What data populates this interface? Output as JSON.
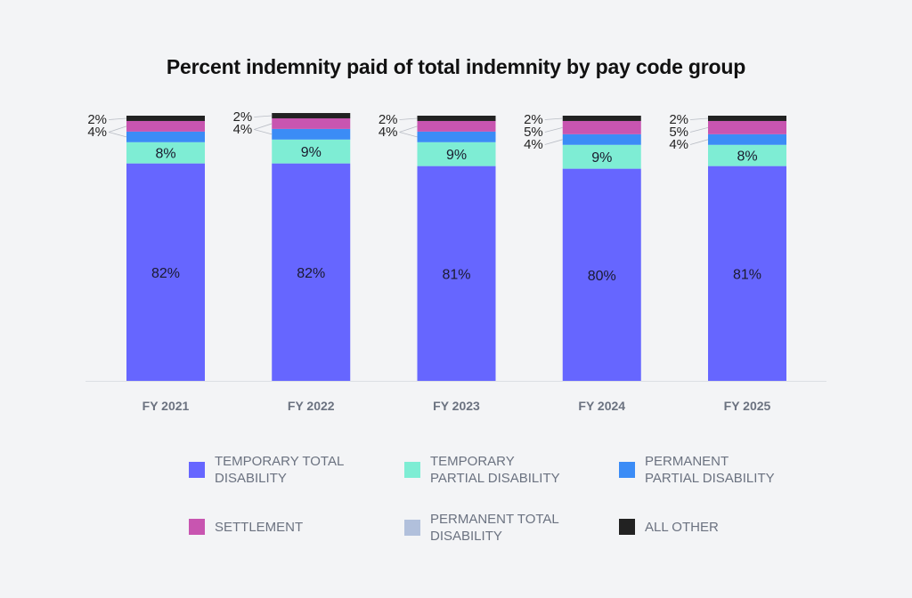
{
  "chart_data": {
    "type": "bar",
    "stacked": true,
    "title": "Percent indemnity paid of total indemnity by pay code group",
    "xlabel": "",
    "ylabel": "",
    "ylim": [
      0,
      100
    ],
    "grid": false,
    "legend_position": "bottom",
    "categories": [
      "FY 2021",
      "FY 2022",
      "FY 2023",
      "FY 2024",
      "FY 2025"
    ],
    "series": [
      {
        "name": "TEMPORARY TOTAL DISABILITY",
        "label": "TEMPORARY TOTAL\nDISABILITY",
        "color": "#6666ff",
        "values": [
          82,
          82,
          81,
          80,
          81
        ]
      },
      {
        "name": "TEMPORARY PARTIAL DISABILITY",
        "label": "TEMPORARY\nPARTIAL DISABILITY",
        "color": "#7eedd4",
        "values": [
          8,
          9,
          9,
          9,
          8
        ]
      },
      {
        "name": "PERMANENT TOTAL DISABILITY",
        "label": "PERMANENT TOTAL\nDISABILITY",
        "color": "#b1c0dc",
        "values": [
          0,
          0,
          0,
          0,
          0
        ]
      },
      {
        "name": "PERMANENT PARTIAL DISABILITY",
        "label": "PERMANENT\nPARTIAL DISABILITY",
        "color": "#3b8cf6",
        "values": [
          4,
          4,
          4,
          4,
          4
        ]
      },
      {
        "name": "SETTLEMENT",
        "label": "SETTLEMENT",
        "color": "#c855b0",
        "values": [
          4,
          4,
          4,
          5,
          5
        ]
      },
      {
        "name": "ALL OTHER",
        "label": "ALL OTHER",
        "color": "#222222",
        "values": [
          2,
          2,
          2,
          2,
          2
        ]
      }
    ],
    "legend_order": [
      0,
      1,
      3,
      4,
      2,
      5
    ]
  }
}
